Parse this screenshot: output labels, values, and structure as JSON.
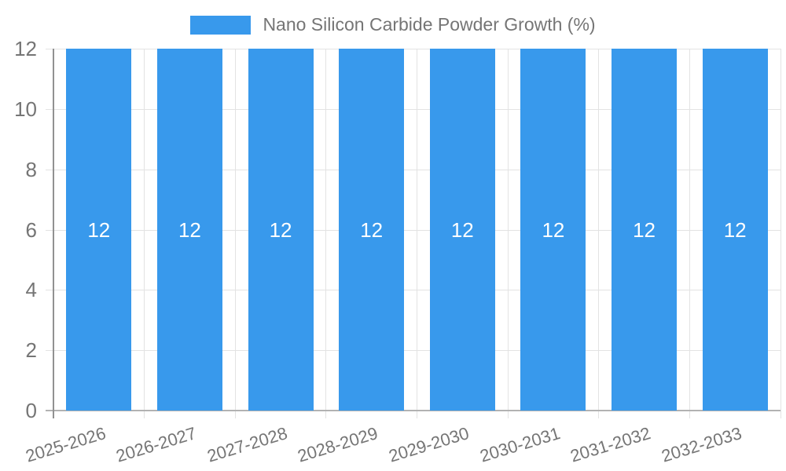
{
  "chart_data": {
    "type": "bar",
    "title": "Nano Silicon Carbide Powder Growth (%)",
    "categories": [
      "2025-2026",
      "2026-2027",
      "2027-2028",
      "2028-2029",
      "2029-2030",
      "2030-2031",
      "2031-2032",
      "2032-2033"
    ],
    "series": [
      {
        "name": "Nano Silicon Carbide Powder Growth (%)",
        "values": [
          12,
          12,
          12,
          12,
          12,
          12,
          12,
          12
        ]
      }
    ],
    "bar_value_labels": [
      "12",
      "12",
      "12",
      "12",
      "12",
      "12",
      "12",
      "12"
    ],
    "xlabel": "",
    "ylabel": "",
    "ylim": [
      0,
      12
    ],
    "yticks": [
      0,
      2,
      4,
      6,
      8,
      10,
      12
    ],
    "grid": true,
    "legend_position": "top",
    "colors": {
      "bar": "#3899EC",
      "bar_label_text": "#FFFFFF",
      "legend_text": "#757575",
      "tick_text": "#757575",
      "gridline": "#E3E3E3",
      "y_axis_line": "#919191",
      "baseline": "#B2B2B2",
      "background": "#FFFFFF"
    }
  }
}
